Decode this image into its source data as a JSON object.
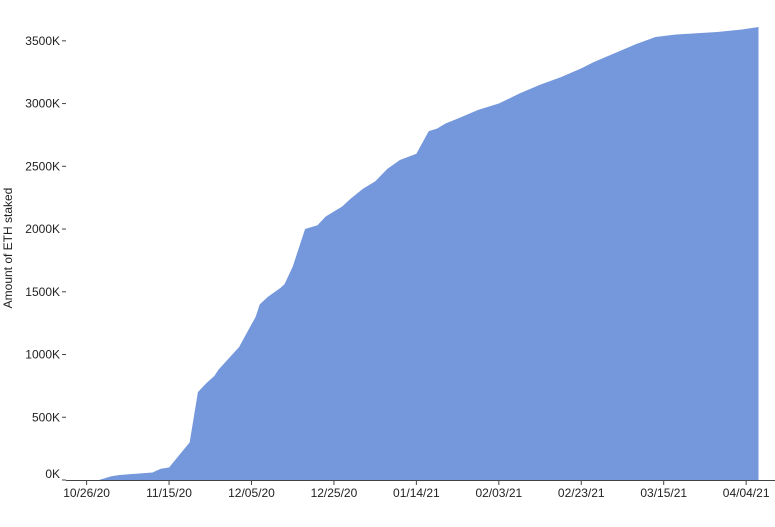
{
  "chart_data": {
    "type": "area",
    "ylabel": "Amount of ETH staked",
    "xlabel": "",
    "y_unit_suffix": "K",
    "ylim": [
      0,
      3650
    ],
    "yticks": [
      0,
      500,
      1000,
      1500,
      2000,
      2500,
      3000,
      3500
    ],
    "ytick_labels": [
      "0K",
      "500K",
      "1000K",
      "1500K",
      "2000K",
      "2500K",
      "3000K",
      "3500K"
    ],
    "xlim": [
      "2020-10-21",
      "2021-04-11"
    ],
    "xticks": [
      "2020-10-26",
      "2020-11-15",
      "2020-12-05",
      "2020-12-25",
      "2021-01-14",
      "2021-02-03",
      "2021-02-23",
      "2021-03-15",
      "2021-04-04"
    ],
    "xtick_labels": [
      "10/26/20",
      "11/15/20",
      "12/05/20",
      "12/25/20",
      "01/14/21",
      "02/03/21",
      "02/23/21",
      "03/15/21",
      "04/04/21"
    ],
    "grid": false,
    "legend": "none",
    "series_color": "#7597DB",
    "series": [
      {
        "x": [
          "2020-10-21",
          "2020-10-29",
          "2020-11-01",
          "2020-11-03",
          "2020-11-07",
          "2020-11-11",
          "2020-11-13",
          "2020-11-15",
          "2020-11-20",
          "2020-11-22",
          "2020-11-24",
          "2020-11-26",
          "2020-11-27",
          "2020-12-02",
          "2020-12-04",
          "2020-12-06",
          "2020-12-07",
          "2020-12-09",
          "2020-12-12",
          "2020-12-13",
          "2020-12-15",
          "2020-12-18",
          "2020-12-21",
          "2020-12-23",
          "2020-12-25",
          "2020-12-27",
          "2020-12-29",
          "2021-01-01",
          "2021-01-04",
          "2021-01-07",
          "2021-01-10",
          "2021-01-14",
          "2021-01-17",
          "2021-01-19",
          "2021-01-21",
          "2021-01-24",
          "2021-01-29",
          "2021-02-03",
          "2021-02-08",
          "2021-02-13",
          "2021-02-18",
          "2021-02-23",
          "2021-02-26",
          "2021-03-03",
          "2021-03-08",
          "2021-03-13",
          "2021-03-18",
          "2021-03-23",
          "2021-03-28",
          "2021-04-03",
          "2021-04-07"
        ],
        "y": [
          0,
          0,
          30,
          40,
          50,
          60,
          90,
          100,
          300,
          700,
          770,
          830,
          880,
          1060,
          1180,
          1300,
          1400,
          1460,
          1530,
          1560,
          1700,
          2000,
          2030,
          2100,
          2140,
          2180,
          2240,
          2320,
          2380,
          2480,
          2550,
          2600,
          2780,
          2800,
          2840,
          2880,
          2950,
          3000,
          3080,
          3150,
          3210,
          3280,
          3330,
          3400,
          3470,
          3530,
          3550,
          3560,
          3570,
          3590,
          3610
        ]
      }
    ]
  }
}
